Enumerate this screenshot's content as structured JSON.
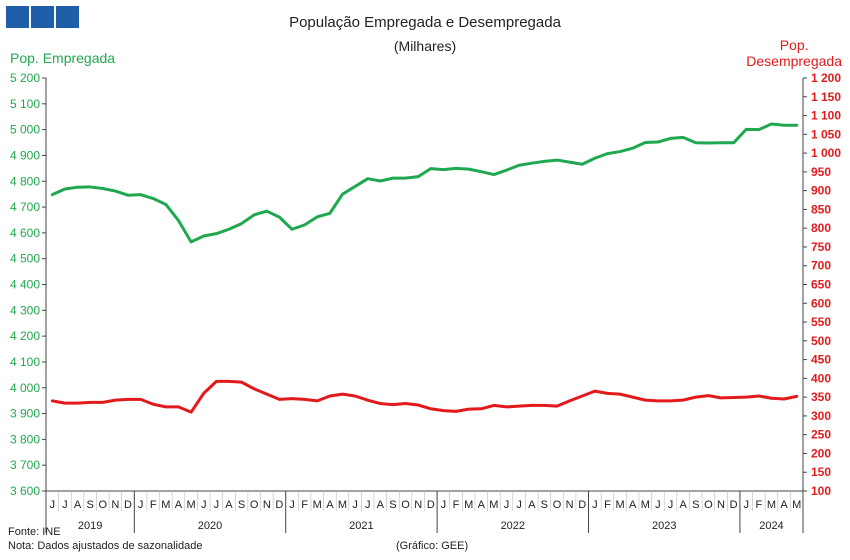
{
  "header": {
    "title": "População  Empregada  e Desempregada",
    "subtitle": "(Milhares)"
  },
  "axis_labels": {
    "left": "Pop. Empregada",
    "right_line1": "Pop.",
    "right_line2": "Desempregada"
  },
  "footer": {
    "source": "Fonte: INE",
    "note": "Nota: Dados ajustados de sazonalidade",
    "credit": "(Gráfico: GEE)"
  },
  "colors": {
    "employed": "#1fa84f",
    "unemployed": "#e31a1c",
    "logo": "#1f5faa"
  },
  "chart_data": {
    "type": "line",
    "title": "População  Empregada  e Desempregada",
    "subtitle": "(Milhares)",
    "legend": "none",
    "grid": false,
    "months": [
      "J",
      "J",
      "A",
      "S",
      "O",
      "N",
      "D",
      "J",
      "F",
      "M",
      "A",
      "M",
      "J",
      "J",
      "A",
      "S",
      "O",
      "N",
      "D",
      "J",
      "F",
      "M",
      "A",
      "M",
      "J",
      "J",
      "A",
      "S",
      "O",
      "N",
      "D",
      "J",
      "F",
      "M",
      "A",
      "M",
      "J",
      "J",
      "A",
      "S",
      "O",
      "N",
      "D",
      "J",
      "F",
      "M",
      "A",
      "M",
      "J",
      "J",
      "A",
      "S",
      "O",
      "N",
      "D",
      "J",
      "F",
      "M",
      "A",
      "M"
    ],
    "years": [
      {
        "label": "2019",
        "start": 0,
        "end": 6
      },
      {
        "label": "2020",
        "start": 7,
        "end": 18
      },
      {
        "label": "2021",
        "start": 19,
        "end": 30
      },
      {
        "label": "2022",
        "start": 31,
        "end": 42
      },
      {
        "label": "2023",
        "start": 43,
        "end": 54
      },
      {
        "label": "2024",
        "start": 55,
        "end": 59
      }
    ],
    "y_left": {
      "label": "Pop. Empregada",
      "min": 3600,
      "max": 5200,
      "step": 100
    },
    "y_right": {
      "label": "Pop. Desempregada",
      "min": 100,
      "max": 1200,
      "step": 50
    },
    "series": [
      {
        "name": "Pop. Empregada",
        "axis": "left",
        "values": [
          4748,
          4770,
          4777,
          4778,
          4772,
          4762,
          4746,
          4748,
          4733,
          4710,
          4648,
          4565,
          4588,
          4597,
          4614,
          4636,
          4670,
          4684,
          4661,
          4614,
          4631,
          4662,
          4676,
          4750,
          4780,
          4810,
          4801,
          4812,
          4812,
          4818,
          4849,
          4845,
          4850,
          4847,
          4837,
          4826,
          4843,
          4862,
          4870,
          4877,
          4882,
          4874,
          4866,
          4889,
          4907,
          4915,
          4928,
          4950,
          4952,
          4966,
          4970,
          4949,
          4948,
          4949,
          4949,
          5001,
          5000,
          5022,
          5017,
          5017
        ]
      },
      {
        "name": "Pop. Desempregada",
        "axis": "right",
        "values": [
          340,
          334,
          334,
          336,
          336,
          342,
          344,
          344,
          331,
          324,
          324,
          310,
          360,
          392,
          392,
          390,
          372,
          358,
          344,
          346,
          344,
          340,
          353,
          358,
          353,
          342,
          333,
          330,
          333,
          329,
          319,
          314,
          312,
          318,
          319,
          328,
          324,
          326,
          328,
          328,
          326,
          340,
          353,
          366,
          360,
          358,
          350,
          342,
          340,
          340,
          342,
          350,
          354,
          348,
          349,
          350,
          353,
          347,
          345,
          352
        ]
      }
    ]
  }
}
